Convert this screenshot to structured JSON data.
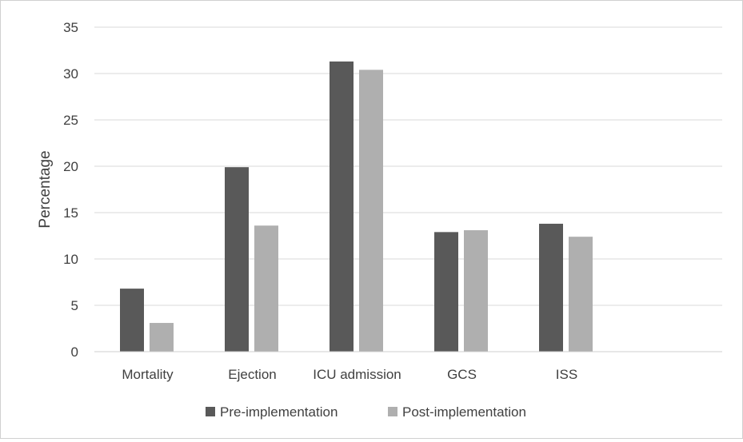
{
  "chart_data": {
    "type": "bar",
    "title": "",
    "xlabel": "",
    "ylabel": "Percentage",
    "ylim": [
      0,
      35
    ],
    "yticks": [
      0,
      5,
      10,
      15,
      20,
      25,
      30,
      35
    ],
    "grid": true,
    "legend_position": "bottom",
    "categories": [
      "Mortality",
      "Ejection",
      "ICU admission",
      "GCS",
      "ISS"
    ],
    "series": [
      {
        "name": "Pre-implementation",
        "color": "#595959",
        "values": [
          6.8,
          19.9,
          31.3,
          12.9,
          13.8
        ]
      },
      {
        "name": "Post-implementation",
        "color": "#afafaf",
        "values": [
          3.1,
          13.6,
          30.4,
          13.1,
          12.4
        ]
      }
    ]
  }
}
